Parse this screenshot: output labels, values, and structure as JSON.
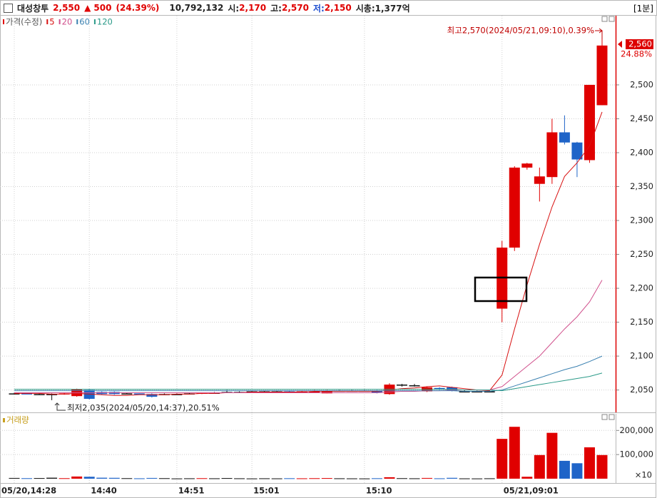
{
  "header": {
    "name": "대성창투",
    "price": "2,550",
    "change_arrow": "▲",
    "change": "500",
    "change_pct": "(24.39%)",
    "volume": "10,792,132",
    "open_label": "시:",
    "open": "2,170",
    "high_label": "고:",
    "high": "2,570",
    "low_label": "저:",
    "low": "2,150",
    "mcap": "시총:1,377억",
    "interval": "[1분]"
  },
  "chart_data": [
    {
      "type": "candlestick",
      "categories": [
        "05/20,14:28",
        null,
        null,
        null,
        null,
        null,
        "14:40",
        null,
        null,
        null,
        null,
        null,
        null,
        "14:51",
        null,
        null,
        null,
        null,
        null,
        "15:01",
        null,
        null,
        null,
        null,
        null,
        null,
        null,
        null,
        "15:10",
        null,
        null,
        null,
        null,
        null,
        null,
        null,
        null,
        null,
        null,
        "05/21,09:01",
        null,
        null,
        null,
        null,
        null,
        null,
        null,
        null
      ],
      "ylim": [
        2017,
        2602
      ],
      "yticks": [
        {
          "value": 2050,
          "label": "2,050"
        },
        {
          "value": 2100,
          "label": "2,100"
        },
        {
          "value": 2150,
          "label": "2,150"
        },
        {
          "value": 2200,
          "label": "2,200"
        },
        {
          "value": 2250,
          "label": "2,250"
        },
        {
          "value": 2300,
          "label": "2,300"
        },
        {
          "value": 2350,
          "label": "2,350"
        },
        {
          "value": 2400,
          "label": "2,400"
        },
        {
          "value": 2450,
          "label": "2,450"
        },
        {
          "value": 2500,
          "label": "2,500"
        }
      ],
      "grid": true,
      "up_color": "#e00000",
      "down_color": "#1f64c8",
      "flat_color": "#111111",
      "series": [
        {
          "name": "가격(수정)",
          "color": "#e00000",
          "open": [
            2045,
            2045,
            2044,
            2044,
            2044,
            2041,
            2050,
            2047,
            2047,
            2045,
            2045,
            2044,
            2044,
            2044,
            2045,
            2045,
            2046,
            2047,
            2047,
            2048,
            2048,
            2048,
            2048,
            2047,
            2047,
            2045,
            2049,
            2049,
            2049,
            2049,
            2044,
            2058,
            2057,
            2048,
            2053,
            2054,
            2048,
            2048,
            2048,
            2170,
            2260,
            2378,
            2354,
            2364,
            2430,
            2415,
            2389,
            2470
          ],
          "high": [
            2046,
            2046,
            2045,
            2045,
            2046,
            2052,
            2051,
            2048,
            2048,
            2046,
            2045,
            2045,
            2045,
            2045,
            2046,
            2046,
            2047,
            2050,
            2048,
            2049,
            2049,
            2049,
            2049,
            2049,
            2050,
            2050,
            2050,
            2050,
            2050,
            2050,
            2060,
            2059,
            2059,
            2055,
            2054,
            2055,
            2050,
            2049,
            2049,
            2270,
            2380,
            2385,
            2378,
            2450,
            2455,
            2416,
            2500,
            2570
          ],
          "low": [
            2044,
            2044,
            2043,
            2035,
            2043,
            2040,
            2036,
            2043,
            2043,
            2044,
            2044,
            2039,
            2043,
            2043,
            2044,
            2044,
            2045,
            2046,
            2046,
            2047,
            2047,
            2047,
            2046,
            2046,
            2046,
            2045,
            2048,
            2048,
            2048,
            2045,
            2043,
            2055,
            2055,
            2047,
            2050,
            2048,
            2047,
            2047,
            2047,
            2150,
            2255,
            2375,
            2328,
            2354,
            2412,
            2364,
            2385,
            2470
          ],
          "close": [
            2045,
            2044,
            2044,
            2044,
            2045,
            2051,
            2037,
            2044,
            2044,
            2045,
            2044,
            2040,
            2044,
            2044,
            2045,
            2046,
            2046,
            2047,
            2047,
            2048,
            2048,
            2048,
            2047,
            2048,
            2048,
            2049,
            2049,
            2049,
            2049,
            2046,
            2058,
            2058,
            2057,
            2054,
            2052,
            2049,
            2048,
            2048,
            2048,
            2260,
            2378,
            2384,
            2365,
            2430,
            2415,
            2390,
            2500,
            2558
          ]
        },
        {
          "name": "5",
          "color": "#d81010",
          "values": [
            2045,
            2045,
            2045,
            2044,
            2044,
            2045,
            2044,
            2043,
            2042,
            2042,
            2043,
            2043,
            2043,
            2044,
            2044,
            2045,
            2045,
            2046,
            2046,
            2047,
            2047,
            2047,
            2047,
            2047,
            2048,
            2048,
            2048,
            2048,
            2048,
            2048,
            2050,
            2052,
            2053,
            2055,
            2056,
            2054,
            2052,
            2050,
            2049,
            2072,
            2140,
            2205,
            2265,
            2320,
            2365,
            2385,
            2410,
            2460
          ]
        },
        {
          "name": "20",
          "color": "#d0508c",
          "values": [
            2046,
            2046,
            2046,
            2046,
            2046,
            2046,
            2046,
            2046,
            2046,
            2046,
            2046,
            2046,
            2046,
            2046,
            2046,
            2046,
            2046,
            2046,
            2046,
            2046,
            2046,
            2046,
            2046,
            2046,
            2046,
            2046,
            2046,
            2046,
            2046,
            2046,
            2047,
            2048,
            2048,
            2049,
            2049,
            2050,
            2050,
            2050,
            2050,
            2055,
            2070,
            2085,
            2100,
            2120,
            2140,
            2158,
            2180,
            2212
          ]
        },
        {
          "name": "60",
          "color": "#3a80b0",
          "values": [
            2049,
            2049,
            2049,
            2049,
            2049,
            2049,
            2049,
            2049,
            2049,
            2049,
            2049,
            2049,
            2049,
            2049,
            2049,
            2049,
            2049,
            2049,
            2049,
            2049,
            2049,
            2049,
            2049,
            2049,
            2049,
            2049,
            2049,
            2049,
            2049,
            2049,
            2049,
            2049,
            2049,
            2049,
            2049,
            2049,
            2048,
            2048,
            2048,
            2050,
            2056,
            2062,
            2068,
            2074,
            2080,
            2085,
            2092,
            2100
          ]
        },
        {
          "name": "120",
          "color": "#2a9a88",
          "values": [
            2051,
            2051,
            2051,
            2051,
            2051,
            2051,
            2051,
            2051,
            2051,
            2051,
            2051,
            2051,
            2051,
            2051,
            2051,
            2051,
            2051,
            2051,
            2051,
            2051,
            2051,
            2051,
            2051,
            2051,
            2051,
            2051,
            2051,
            2051,
            2051,
            2051,
            2051,
            2051,
            2051,
            2051,
            2051,
            2051,
            2050,
            2050,
            2050,
            2049,
            2052,
            2055,
            2058,
            2061,
            2064,
            2067,
            2070,
            2075
          ]
        }
      ],
      "high_annotation": "최고2,570(2024/05/21,09:10),0.39%",
      "low_annotation": "최저2,035(2024/05/20,14:37),20.51%",
      "last_label": "2,560",
      "last_pct": "24.88%"
    },
    {
      "type": "bar",
      "title": "거래량",
      "values": [
        3000,
        2000,
        2500,
        4000,
        2000,
        9000,
        8000,
        4000,
        3500,
        2000,
        1500,
        3000,
        2000,
        1000,
        1500,
        2000,
        1500,
        2500,
        1500,
        1000,
        1500,
        1200,
        1800,
        1500,
        2000,
        2500,
        1500,
        1200,
        1000,
        1800,
        6000,
        2000,
        1500,
        3000,
        1500,
        3500,
        1200,
        1000,
        1500,
        165000,
        215000,
        8000,
        98000,
        190000,
        74000,
        64000,
        130000,
        98000
      ],
      "ylim": [
        -15000,
        260000
      ],
      "yticks": [
        {
          "value": 100000,
          "label": "100,000"
        },
        {
          "value": 200000,
          "label": "200,000"
        }
      ],
      "unit_label": "×10"
    }
  ]
}
